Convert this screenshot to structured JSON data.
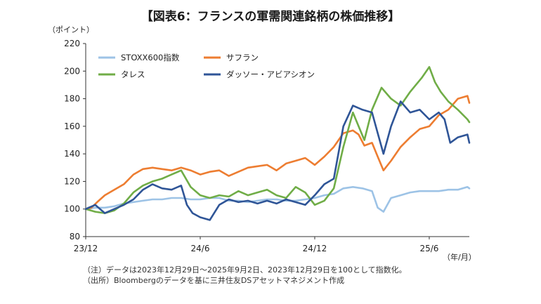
{
  "title": "【図表6：フランスの軍需関連銘柄の株価推移】",
  "notes": [
    "（注）データは2023年12月29日～2025年9月2日、2023年12月29日を100として指数化。",
    "（出所）Bloombergのデータを基に三井住友DSアセットマネジメント作成"
  ],
  "chart_data": {
    "type": "line",
    "ylabel": "（ポイント）",
    "xlabel": "（年/月）",
    "ylim": [
      80,
      220
    ],
    "yticks": [
      80,
      100,
      120,
      140,
      160,
      180,
      200,
      220
    ],
    "xlim": [
      0,
      20.1
    ],
    "xticks": [
      {
        "x": 0,
        "label": "23/12"
      },
      {
        "x": 6,
        "label": "24/6"
      },
      {
        "x": 12,
        "label": "24/12"
      },
      {
        "x": 18,
        "label": "25/6"
      }
    ],
    "grid": false,
    "legend": "top-left",
    "series": [
      {
        "name": "STOXX600指数",
        "color": "#9dc3e6",
        "x": [
          0,
          0.5,
          1,
          1.5,
          2,
          2.5,
          3,
          3.5,
          4,
          4.5,
          5,
          5.5,
          6,
          6.5,
          7,
          7.5,
          8,
          8.5,
          9,
          9.5,
          10,
          10.5,
          11,
          11.5,
          12,
          12.5,
          13,
          13.5,
          14,
          14.5,
          15,
          15.3,
          15.6,
          16,
          16.5,
          17,
          17.5,
          18,
          18.5,
          19,
          19.5,
          20,
          20.1
        ],
        "values": [
          100,
          101,
          101,
          102,
          104,
          105,
          106,
          107,
          107,
          108,
          108,
          107,
          107,
          108,
          108,
          106,
          106,
          105,
          106,
          107,
          107,
          106,
          106,
          107,
          108,
          110,
          111,
          115,
          116,
          115,
          113,
          101,
          98,
          108,
          110,
          112,
          113,
          113,
          113,
          114,
          114,
          116,
          115
        ]
      },
      {
        "name": "サフラン",
        "color": "#ed7d31",
        "x": [
          0,
          0.3,
          0.6,
          1,
          1.5,
          2,
          2.5,
          3,
          3.5,
          4,
          4.5,
          5,
          5.5,
          6,
          6.5,
          7,
          7.5,
          8,
          8.5,
          9,
          9.5,
          10,
          10.5,
          11,
          11.5,
          12,
          12.5,
          13,
          13.5,
          14,
          14.3,
          14.6,
          15,
          15.3,
          15.6,
          16,
          16.5,
          17,
          17.5,
          18,
          18.5,
          19,
          19.5,
          20,
          20.1
        ],
        "values": [
          100,
          101,
          105,
          110,
          114,
          118,
          125,
          129,
          130,
          129,
          128,
          130,
          128,
          125,
          127,
          128,
          124,
          127,
          130,
          131,
          132,
          128,
          133,
          135,
          137,
          132,
          138,
          145,
          155,
          157,
          154,
          146,
          148,
          138,
          128,
          135,
          145,
          152,
          158,
          160,
          168,
          172,
          180,
          182,
          177
        ]
      },
      {
        "name": "タレス",
        "color": "#70ad47",
        "x": [
          0,
          0.5,
          1,
          1.5,
          2,
          2.5,
          3,
          3.5,
          4,
          4.5,
          5,
          5.5,
          6,
          6.5,
          7,
          7.5,
          8,
          8.5,
          9,
          9.5,
          10,
          10.5,
          11,
          11.5,
          12,
          12.5,
          13,
          13.5,
          14,
          14.3,
          14.6,
          15,
          15.5,
          16,
          16.5,
          17,
          17.3,
          17.6,
          18,
          18.3,
          18.6,
          19,
          19.5,
          20,
          20.1
        ],
        "values": [
          100,
          98,
          97,
          99,
          104,
          112,
          117,
          120,
          122,
          125,
          128,
          116,
          110,
          108,
          110,
          109,
          113,
          110,
          112,
          114,
          110,
          108,
          116,
          112,
          103,
          106,
          115,
          145,
          170,
          160,
          150,
          172,
          188,
          180,
          175,
          185,
          190,
          195,
          203,
          192,
          185,
          178,
          172,
          165,
          163
        ]
      },
      {
        "name": "ダッソー・アビアシオン",
        "color": "#2f5597",
        "x": [
          0,
          0.5,
          1,
          1.5,
          2,
          2.5,
          3,
          3.5,
          4,
          4.5,
          5,
          5.3,
          5.6,
          6,
          6.5,
          7,
          7.5,
          8,
          8.5,
          9,
          9.5,
          10,
          10.5,
          11,
          11.5,
          12,
          12.5,
          13,
          13.5,
          14,
          14.5,
          15,
          15.3,
          15.6,
          16,
          16.5,
          17,
          17.5,
          18,
          18.5,
          18.8,
          19.1,
          19.5,
          20,
          20.1
        ],
        "values": [
          100,
          103,
          97,
          100,
          103,
          107,
          114,
          118,
          115,
          114,
          117,
          103,
          97,
          94,
          92,
          103,
          107,
          105,
          106,
          104,
          106,
          104,
          107,
          105,
          103,
          110,
          118,
          122,
          160,
          175,
          172,
          170,
          155,
          140,
          160,
          178,
          170,
          172,
          165,
          170,
          165,
          148,
          152,
          154,
          148
        ]
      }
    ]
  }
}
